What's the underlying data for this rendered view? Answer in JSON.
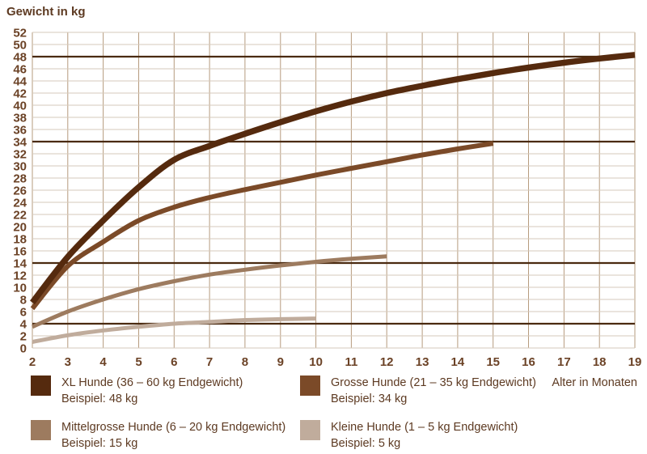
{
  "colors": {
    "background": "#ffffff",
    "text": "#5d3a22",
    "tick_text": "#6b4226",
    "grid_horizontal": "#d6cabb",
    "grid_vertical": "#b69b7e",
    "reference_line": "#4a2a10"
  },
  "chart_data": {
    "type": "line",
    "title": "Gewicht in kg",
    "ylabel": "Gewicht in kg",
    "xlabel": "Alter in Monaten",
    "xlim": [
      2,
      19
    ],
    "ylim": [
      0,
      52
    ],
    "grid": true,
    "legend_position": "bottom",
    "x_ticks": [
      2,
      3,
      4,
      5,
      6,
      7,
      8,
      9,
      10,
      11,
      12,
      13,
      14,
      15,
      16,
      17,
      18,
      19
    ],
    "y_ticks": [
      0,
      2,
      4,
      6,
      8,
      10,
      12,
      14,
      16,
      18,
      20,
      22,
      24,
      26,
      28,
      30,
      32,
      34,
      36,
      38,
      40,
      42,
      44,
      46,
      48,
      50,
      52
    ],
    "reference_lines": [
      {
        "y": 48
      },
      {
        "y": 34
      },
      {
        "y": 14
      },
      {
        "y": 4
      }
    ],
    "series": [
      {
        "label": "XL Hunde (36 – 60 kg Endgewicht)",
        "example": "Beispiel: 48 kg",
        "color": "#552a0e",
        "stroke_width": 7.5,
        "x": [
          2,
          3,
          4,
          5,
          6,
          7,
          8,
          9,
          10,
          11,
          12,
          13,
          14,
          15,
          16,
          17,
          18,
          19
        ],
        "values": [
          7.5,
          15,
          21,
          26.5,
          31,
          33.3,
          35.3,
          37.2,
          39,
          40.6,
          42,
          43.2,
          44.3,
          45.3,
          46.2,
          47,
          47.7,
          48.3
        ]
      },
      {
        "label": "Grosse Hunde (21 – 35 kg Endgewicht)",
        "example": "Beispiel: 34 kg",
        "color": "#7b4a28",
        "stroke_width": 6,
        "x": [
          2,
          3,
          4,
          5,
          6,
          7,
          8,
          9,
          10,
          11,
          12,
          13,
          14,
          15
        ],
        "values": [
          6.5,
          13.5,
          17.5,
          21,
          23.2,
          24.8,
          26.1,
          27.3,
          28.5,
          29.6,
          30.7,
          31.8,
          32.8,
          33.7
        ]
      },
      {
        "label": "Mittelgrosse Hunde (6 – 20 kg Endgewicht)",
        "example": "Beispiel: 15 kg",
        "color": "#9d7b5f",
        "stroke_width": 5,
        "x": [
          2,
          3,
          4,
          5,
          6,
          7,
          8,
          9,
          10,
          11,
          12
        ],
        "values": [
          3.5,
          6,
          8,
          9.7,
          11,
          12.1,
          12.9,
          13.6,
          14.2,
          14.7,
          15.1
        ]
      },
      {
        "label": "Kleine Hunde (1 – 5 kg Endgewicht)",
        "example": "Beispiel: 5 kg",
        "color": "#c0ac9c",
        "stroke_width": 5,
        "x": [
          2,
          3,
          4,
          5,
          6,
          7,
          8,
          9,
          10
        ],
        "values": [
          1,
          2.1,
          2.9,
          3.5,
          4,
          4.3,
          4.6,
          4.75,
          4.85
        ]
      }
    ]
  }
}
